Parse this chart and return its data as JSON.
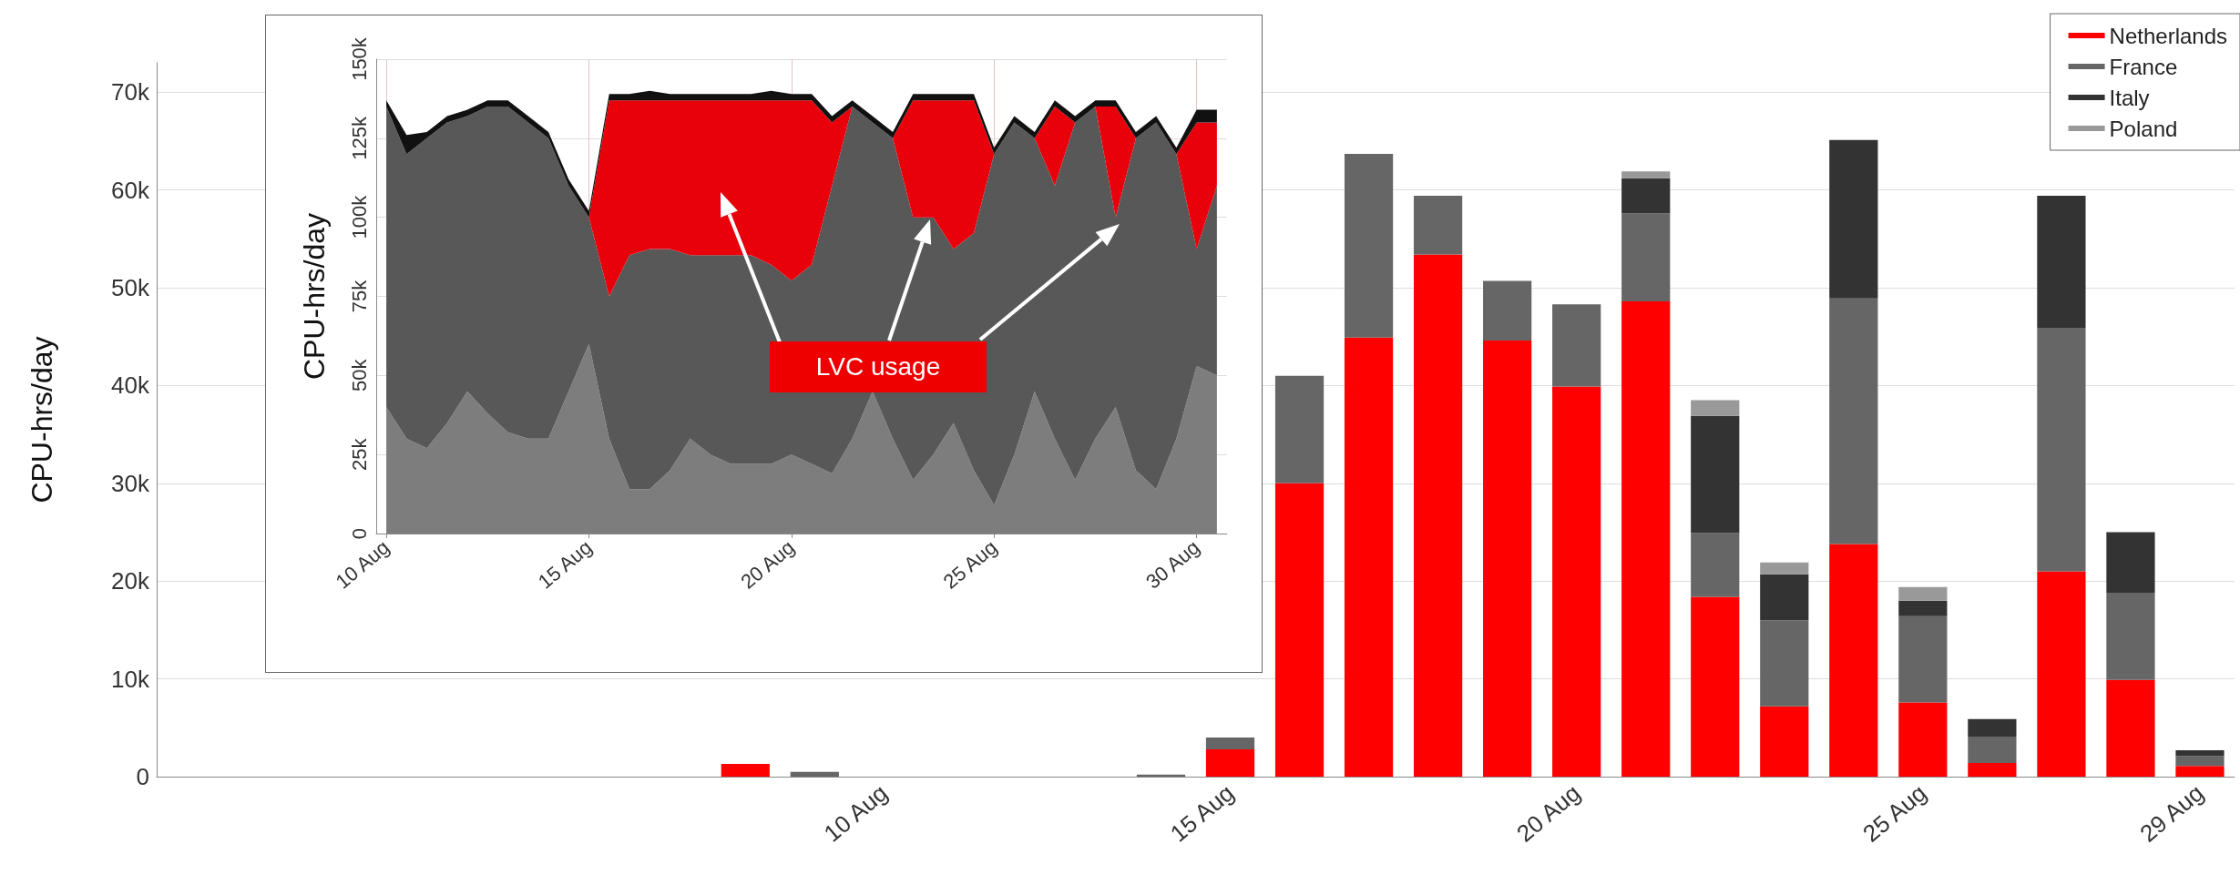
{
  "chart_data": [
    {
      "type": "bar",
      "ylabel": "CPU-hrs/day",
      "stacked": true,
      "legend": "top right",
      "grid": "y",
      "categories": [
        null,
        null,
        null,
        null,
        null,
        null,
        null,
        null,
        null,
        null,
        "10 Aug",
        null,
        null,
        null,
        null,
        "15 Aug",
        null,
        null,
        null,
        null,
        "20 Aug",
        null,
        null,
        null,
        null,
        "25 Aug",
        null,
        null,
        null,
        "29 Aug"
      ],
      "ylim": [
        0,
        73000
      ],
      "yticks": [
        0,
        {
          "value": 10000,
          "label": "10k"
        },
        {
          "value": 20000,
          "label": "20k"
        },
        {
          "value": 30000,
          "label": "30k"
        },
        {
          "value": 40000,
          "label": "40k"
        },
        {
          "value": 50000,
          "label": "50k"
        },
        {
          "value": 60000,
          "label": "60k"
        },
        {
          "value": 70000,
          "label": "70k"
        }
      ],
      "series": [
        {
          "name": "Netherlands",
          "color": "#ff0000",
          "values": [
            null,
            null,
            null,
            null,
            null,
            null,
            null,
            null,
            1300,
            null,
            null,
            null,
            null,
            null,
            null,
            2800,
            30000,
            44900,
            53400,
            44600,
            39900,
            48600,
            18400,
            7200,
            23800,
            7600,
            1400,
            21000,
            9900,
            1100
          ]
        },
        {
          "name": "France",
          "color": "#666666",
          "values": [
            null,
            null,
            null,
            null,
            null,
            null,
            null,
            null,
            null,
            500,
            null,
            null,
            null,
            null,
            200,
            1200,
            11000,
            18800,
            6000,
            6100,
            8400,
            9000,
            6500,
            8800,
            25100,
            8800,
            2700,
            24900,
            8900,
            1000
          ]
        },
        {
          "name": "Italy",
          "color": "#333333",
          "values": [
            null,
            null,
            null,
            null,
            null,
            null,
            null,
            null,
            null,
            null,
            null,
            null,
            null,
            null,
            null,
            null,
            null,
            null,
            null,
            null,
            null,
            3600,
            12000,
            4700,
            16200,
            1600,
            1800,
            13500,
            6200,
            600
          ]
        },
        {
          "name": "Poland",
          "color": "#999999",
          "values": [
            null,
            null,
            null,
            null,
            null,
            null,
            null,
            null,
            null,
            null,
            null,
            null,
            null,
            null,
            null,
            null,
            null,
            null,
            null,
            null,
            null,
            700,
            1600,
            1200,
            null,
            1400,
            null,
            null,
            null,
            null
          ]
        }
      ]
    },
    {
      "type": "area",
      "ylabel": "CPU-hrs/day",
      "stacked": true,
      "grid": true,
      "annotations": [
        "LVC usage"
      ],
      "x": [
        "--08-10T00:00",
        "--08-10T12:00",
        "--08-11T00:00",
        "--08-11T12:00",
        "--08-12T00:00",
        "--08-12T12:00",
        "--08-13T00:00",
        "--08-13T12:00",
        "--08-14T00:00",
        "--08-14T12:00",
        "--08-15T00:00",
        "--08-15T12:00",
        "--08-16T00:00",
        "--08-16T12:00",
        "--08-17T00:00",
        "--08-17T12:00",
        "--08-18T00:00",
        "--08-18T12:00",
        "--08-19T00:00",
        "--08-19T12:00",
        "--08-20T00:00",
        "--08-20T12:00",
        "--08-21T00:00",
        "--08-21T12:00",
        "--08-22T00:00",
        "--08-22T12:00",
        "--08-23T00:00",
        "--08-23T12:00",
        "--08-24T00:00",
        "--08-24T12:00",
        "--08-25T00:00",
        "--08-25T12:00",
        "--08-26T00:00",
        "--08-26T12:00",
        "--08-27T00:00",
        "--08-27T12:00",
        "--08-28T00:00",
        "--08-28T12:00",
        "--08-29T00:00",
        "--08-29T12:00",
        "--08-30T00:00",
        "--08-30T12:00"
      ],
      "xlim": [
        "--08-09T18:00",
        "--08-30T18:00"
      ],
      "xticks": [
        {
          "value": "--08-10",
          "label": "10 Aug"
        },
        {
          "value": "--08-15",
          "label": "15 Aug"
        },
        {
          "value": "--08-20",
          "label": "20 Aug"
        },
        {
          "value": "--08-25",
          "label": "25 Aug"
        },
        {
          "value": "--08-30",
          "label": "30 Aug"
        }
      ],
      "ylim": [
        0,
        150000
      ],
      "yticks": [
        0,
        {
          "value": 25000,
          "label": "25k"
        },
        {
          "value": 50000,
          "label": "50k"
        },
        {
          "value": 75000,
          "label": "75k"
        },
        {
          "value": 100000,
          "label": "100k"
        },
        {
          "value": 125000,
          "label": "125k"
        },
        {
          "value": 150000,
          "label": "150k"
        }
      ],
      "series": [
        {
          "color": "#7d7d7d",
          "values": [
            40000,
            30000,
            27000,
            35000,
            45000,
            38000,
            32000,
            30000,
            30000,
            45000,
            60000,
            30000,
            14000,
            14000,
            20000,
            30000,
            25000,
            22000,
            22000,
            22000,
            25000,
            22000,
            19000,
            30000,
            45000,
            30000,
            17000,
            25000,
            35000,
            20000,
            9000,
            25000,
            45000,
            30000,
            17000,
            30000,
            40000,
            20000,
            14000,
            30000,
            53000,
            50000
          ]
        },
        {
          "color": "#585858",
          "values": [
            95000,
            90000,
            98000,
            95000,
            87000,
            97000,
            103000,
            100000,
            95000,
            65000,
            40000,
            45000,
            74000,
            76000,
            70000,
            58000,
            63000,
            66000,
            66000,
            63000,
            55000,
            63000,
            91000,
            105000,
            85000,
            95000,
            83000,
            75000,
            55000,
            75000,
            111000,
            105000,
            80000,
            80000,
            113000,
            105000,
            60000,
            105000,
            116000,
            90000,
            37000,
            60000
          ]
        },
        {
          "color": "#e8000b",
          "values": [
            0,
            0,
            0,
            0,
            0,
            0,
            0,
            0,
            0,
            0,
            0,
            62000,
            49000,
            47000,
            47000,
            49000,
            49000,
            49000,
            49000,
            52000,
            57000,
            52000,
            20000,
            0,
            0,
            0,
            37000,
            37000,
            47000,
            42000,
            0,
            0,
            0,
            25000,
            0,
            0,
            35000,
            0,
            0,
            0,
            40000,
            20000
          ]
        },
        {
          "color": "#111111",
          "values": [
            2000,
            6000,
            2000,
            2000,
            2000,
            2000,
            2000,
            2000,
            2000,
            2000,
            2000,
            2000,
            2000,
            3000,
            2000,
            2000,
            2000,
            2000,
            2000,
            3000,
            2000,
            2000,
            2000,
            2000,
            2000,
            2000,
            2000,
            2000,
            2000,
            2000,
            2000,
            2000,
            2000,
            2000,
            2000,
            2000,
            2000,
            2000,
            2000,
            2000,
            4000,
            4000
          ]
        }
      ]
    }
  ]
}
